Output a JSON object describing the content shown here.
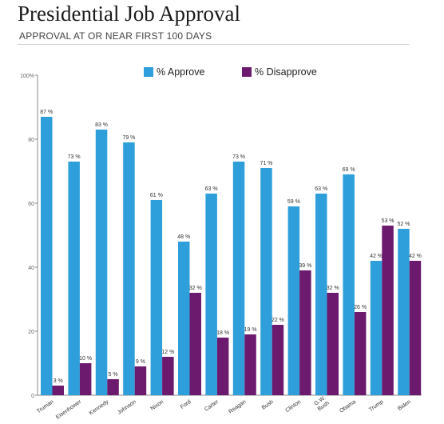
{
  "header": {
    "title": "Presidential Job Approval",
    "subtitle": "APPROVAL AT OR NEAR FIRST 100 DAYS"
  },
  "colors": {
    "approve": "#2e9fda",
    "disapprove": "#6b1a6e",
    "axis": "#888888",
    "tick": "#666666"
  },
  "chart_data": {
    "type": "bar",
    "categories": [
      "Truman",
      "Eisenhower",
      "Kennedy",
      "Johnson",
      "Nixon",
      "Ford",
      "Carter",
      "Reagan",
      "Bush",
      "Clinton",
      "G.W. Bush",
      "Obama",
      "Trump",
      "Biden"
    ],
    "series": [
      {
        "name": "% Approve",
        "values": [
          87,
          73,
          83,
          79,
          61,
          48,
          63,
          73,
          71,
          59,
          63,
          69,
          42,
          52
        ]
      },
      {
        "name": "% Disapprove",
        "values": [
          3,
          10,
          5,
          9,
          12,
          32,
          18,
          19,
          22,
          39,
          32,
          26,
          53,
          42
        ]
      }
    ],
    "yticks": [
      "0",
      "20",
      "40",
      "60",
      "80",
      "100%"
    ],
    "ylim": [
      0,
      100
    ],
    "value_suffix": " %",
    "legend_placement": "top-center",
    "grid": false
  }
}
